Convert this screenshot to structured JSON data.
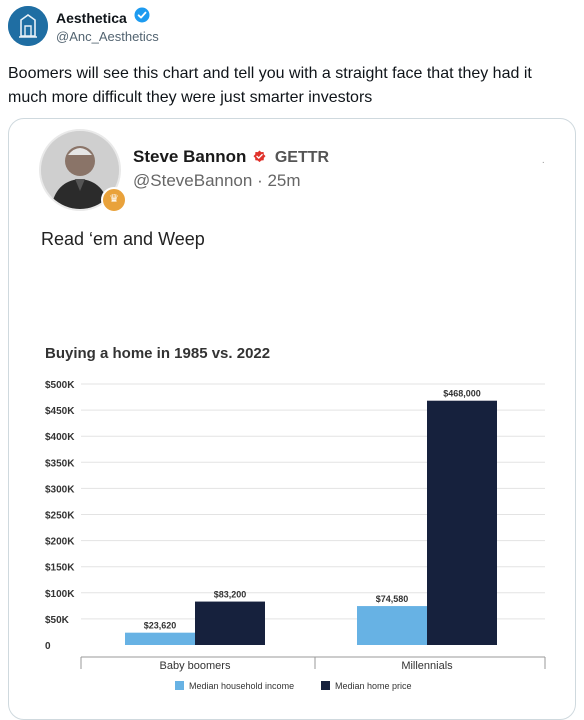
{
  "account": {
    "display_name": "Aesthetica",
    "handle": "@Anc_Aesthetics"
  },
  "tweet": {
    "text": "Boomers will see this chart and tell you with a straight face that they had it much more difficult they were just smarter investors"
  },
  "embedded_post": {
    "author": "Steve Bannon",
    "platform": "GETTR",
    "handle_time": "@SteveBannon · 25m",
    "text": "Read ‘em and Weep"
  },
  "colors": {
    "income": "#67b2e4",
    "home_price": "#16213d",
    "verified": "#1d9bf0",
    "gettr_red": "#e0322b"
  },
  "chart_data": {
    "type": "bar",
    "title": "Buying a home in 1985 vs. 2022",
    "categories": [
      "Baby boomers",
      "Millennials"
    ],
    "series": [
      {
        "name": "Median household income",
        "values": [
          23620,
          74580
        ],
        "labels": [
          "$23,620",
          "$74,580"
        ]
      },
      {
        "name": "Median home price",
        "values": [
          83200,
          468000
        ],
        "labels": [
          "$83,200",
          "$468,000"
        ]
      }
    ],
    "yticks": [
      "0",
      "$50K",
      "$100K",
      "$150K",
      "$200K",
      "$250K",
      "$300K",
      "$350K",
      "$400K",
      "$450K",
      "$500K"
    ],
    "ylim": [
      0,
      500000
    ],
    "grid": true,
    "legend": "bottom"
  }
}
